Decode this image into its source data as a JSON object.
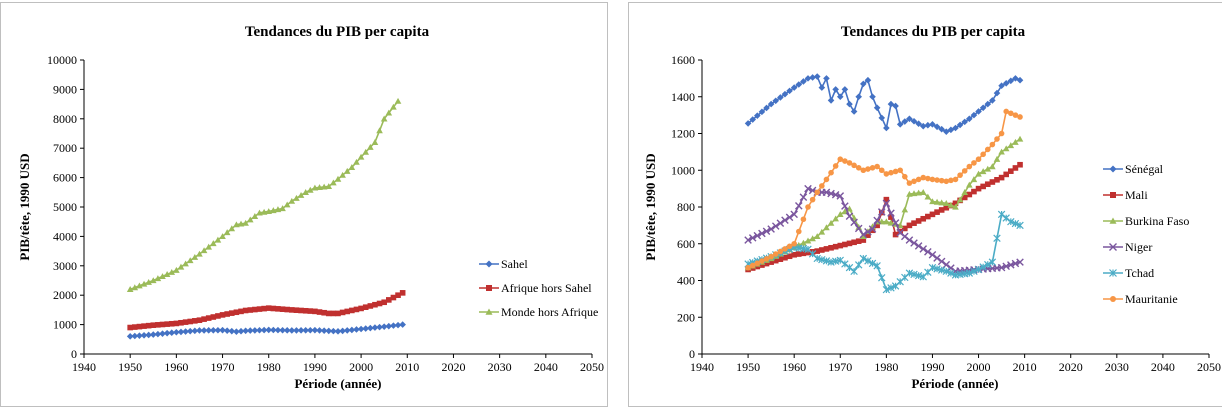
{
  "chart_data": [
    {
      "type": "line",
      "title": "Tendances du PIB per capita",
      "xlabel": "Période (année)",
      "ylabel": "PIB/tête, 1990 USD",
      "xlim": [
        1940,
        2050
      ],
      "ylim": [
        0,
        10000
      ],
      "xticks": [
        1940,
        1950,
        1960,
        1970,
        1980,
        1990,
        2000,
        2010,
        2020,
        2030,
        2040,
        2050
      ],
      "yticks": [
        0,
        1000,
        2000,
        3000,
        4000,
        5000,
        6000,
        7000,
        8000,
        9000,
        10000
      ],
      "grid": false,
      "legend": "right",
      "series": [
        {
          "name": "Sahel",
          "color": "#4472C4",
          "marker": "diamond",
          "x": [
            1950,
            1955,
            1960,
            1965,
            1970,
            1973,
            1975,
            1980,
            1985,
            1990,
            1995,
            2000,
            2005,
            2009
          ],
          "y": [
            600,
            660,
            740,
            800,
            810,
            760,
            790,
            820,
            800,
            810,
            770,
            850,
            930,
            1000
          ]
        },
        {
          "name": "Afrique hors Sahel",
          "color": "#C0302F",
          "marker": "square",
          "x": [
            1950,
            1955,
            1960,
            1965,
            1970,
            1975,
            1980,
            1985,
            1990,
            1993,
            1995,
            2000,
            2005,
            2009
          ],
          "y": [
            900,
            980,
            1040,
            1150,
            1330,
            1480,
            1560,
            1500,
            1450,
            1380,
            1380,
            1550,
            1760,
            2080
          ]
        },
        {
          "name": "Monde hors Afrique",
          "color": "#9BBB59",
          "marker": "triangle",
          "x": [
            1950,
            1955,
            1960,
            1965,
            1970,
            1973,
            1975,
            1978,
            1980,
            1983,
            1985,
            1988,
            1990,
            1993,
            1995,
            1998,
            2000,
            2003,
            2005,
            2008
          ],
          "y": [
            2200,
            2500,
            2850,
            3400,
            4000,
            4400,
            4450,
            4800,
            4850,
            4950,
            5200,
            5500,
            5650,
            5700,
            5950,
            6350,
            6700,
            7200,
            8000,
            8600
          ]
        }
      ]
    },
    {
      "type": "line",
      "title": "Tendances du PIB per capita",
      "xlabel": "Période (année)",
      "ylabel": "PIB/tête, 1990 USD",
      "xlim": [
        1940,
        2050
      ],
      "ylim": [
        0,
        1600
      ],
      "xticks": [
        1940,
        1950,
        1960,
        1970,
        1980,
        1990,
        2000,
        2010,
        2020,
        2030,
        2040,
        2050
      ],
      "yticks": [
        0,
        200,
        400,
        600,
        800,
        1000,
        1200,
        1400,
        1600
      ],
      "grid": false,
      "legend": "right",
      "series": [
        {
          "name": "Sénégal",
          "color": "#4472C4",
          "marker": "diamond",
          "x": [
            1950,
            1955,
            1960,
            1963,
            1965,
            1966,
            1967,
            1968,
            1969,
            1970,
            1971,
            1972,
            1973,
            1974,
            1975,
            1976,
            1977,
            1978,
            1980,
            1981,
            1982,
            1983,
            1985,
            1988,
            1990,
            1993,
            1995,
            1998,
            2000,
            2003,
            2005,
            2008,
            2009
          ],
          "y": [
            1255,
            1360,
            1450,
            1500,
            1510,
            1450,
            1500,
            1380,
            1440,
            1400,
            1440,
            1360,
            1320,
            1400,
            1470,
            1490,
            1400,
            1340,
            1230,
            1360,
            1350,
            1250,
            1280,
            1240,
            1250,
            1210,
            1230,
            1280,
            1320,
            1380,
            1460,
            1500,
            1490
          ]
        },
        {
          "name": "Mali",
          "color": "#C0302F",
          "marker": "square",
          "x": [
            1950,
            1955,
            1960,
            1965,
            1970,
            1975,
            1978,
            1980,
            1982,
            1985,
            1990,
            1995,
            2000,
            2005,
            2009
          ],
          "y": [
            460,
            500,
            540,
            560,
            590,
            620,
            700,
            840,
            650,
            700,
            760,
            820,
            900,
            960,
            1030
          ]
        },
        {
          "name": "Burkina Faso",
          "color": "#9BBB59",
          "marker": "triangle",
          "x": [
            1950,
            1955,
            1960,
            1965,
            1970,
            1972,
            1975,
            1978,
            1980,
            1983,
            1985,
            1988,
            1990,
            1993,
            1995,
            1998,
            2000,
            2003,
            2005,
            2009
          ],
          "y": [
            470,
            520,
            580,
            640,
            760,
            790,
            640,
            720,
            720,
            700,
            870,
            880,
            830,
            820,
            800,
            920,
            980,
            1020,
            1100,
            1170
          ]
        },
        {
          "name": "Niger",
          "color": "#7A569E",
          "marker": "cross",
          "x": [
            1950,
            1955,
            1960,
            1963,
            1965,
            1967,
            1970,
            1972,
            1975,
            1977,
            1980,
            1983,
            1985,
            1990,
            1995,
            2000,
            2005,
            2009
          ],
          "y": [
            620,
            680,
            760,
            900,
            880,
            880,
            860,
            750,
            650,
            680,
            820,
            660,
            620,
            540,
            450,
            460,
            470,
            500
          ]
        },
        {
          "name": "Tchad",
          "color": "#4BACC6",
          "marker": "star",
          "x": [
            1950,
            1955,
            1960,
            1963,
            1965,
            1968,
            1970,
            1973,
            1975,
            1978,
            1980,
            1982,
            1985,
            1988,
            1990,
            1993,
            1995,
            1998,
            2000,
            2003,
            2005,
            2007,
            2009
          ],
          "y": [
            490,
            530,
            580,
            570,
            520,
            500,
            510,
            450,
            520,
            480,
            350,
            370,
            440,
            420,
            470,
            450,
            430,
            440,
            460,
            500,
            760,
            720,
            700
          ]
        },
        {
          "name": "Mauritanie",
          "color": "#F79646",
          "marker": "circle",
          "x": [
            1950,
            1955,
            1960,
            1963,
            1965,
            1967,
            1970,
            1972,
            1975,
            1978,
            1980,
            1983,
            1985,
            1988,
            1990,
            1993,
            1995,
            1998,
            2000,
            2003,
            2005,
            2006,
            2009
          ],
          "y": [
            470,
            530,
            600,
            800,
            880,
            950,
            1060,
            1040,
            1000,
            1020,
            980,
            1000,
            930,
            960,
            950,
            940,
            950,
            1020,
            1060,
            1140,
            1200,
            1320,
            1290
          ]
        }
      ]
    }
  ]
}
